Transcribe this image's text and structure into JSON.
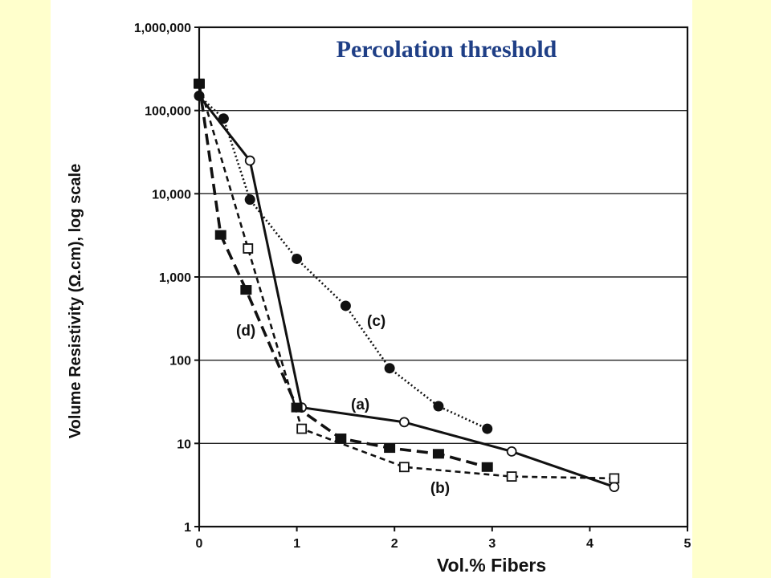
{
  "slide": {
    "title": "Percolation threshold",
    "background_color": "#ffffcc",
    "panel_color": "#ffffff",
    "title_color": "#1f3f86"
  },
  "chart_data": {
    "type": "line",
    "xlabel": "Vol.% Fibers",
    "ylabel": "Volume Resistivity (Ω.cm), log scale",
    "xlim": [
      0,
      5
    ],
    "ylim": [
      1,
      1000000
    ],
    "yscale": "log",
    "grid": "horizontal",
    "x_ticks": [
      0,
      1,
      2,
      3,
      4,
      5
    ],
    "x_tick_labels": [
      "0",
      "1",
      "2",
      "3",
      "4",
      "5"
    ],
    "y_ticks": [
      1,
      10,
      100,
      1000,
      10000,
      100000,
      1000000
    ],
    "y_tick_labels": [
      "1",
      "10",
      "100",
      "1,000",
      "10,000",
      "100,000",
      "1,000,000"
    ],
    "series": [
      {
        "name": "(a)",
        "line_style": "solid",
        "marker": "open-circle",
        "x": [
          0,
          0.52,
          1.05,
          2.1,
          3.2,
          4.25
        ],
        "y": [
          150000,
          25000,
          27,
          18,
          8,
          3
        ]
      },
      {
        "name": "(b)",
        "line_style": "dashed",
        "marker": "open-square",
        "x": [
          0,
          0.5,
          1.05,
          2.1,
          3.2,
          4.25
        ],
        "y": [
          210000,
          2200,
          15,
          5.2,
          4,
          3.8
        ]
      },
      {
        "name": "(c)",
        "line_style": "dotted",
        "marker": "filled-circle",
        "x": [
          0,
          0.25,
          0.52,
          1.0,
          1.5,
          1.95,
          2.45,
          2.95
        ],
        "y": [
          150000,
          80000,
          8500,
          1650,
          450,
          80,
          28,
          15
        ]
      },
      {
        "name": "(d)",
        "line_style": "long-dashed",
        "marker": "filled-square",
        "x": [
          0,
          0.22,
          0.48,
          1.0,
          1.45,
          1.95,
          2.45,
          2.95
        ],
        "y": [
          210000,
          3200,
          700,
          27,
          11.5,
          8.8,
          7.5,
          5.2
        ]
      }
    ]
  }
}
